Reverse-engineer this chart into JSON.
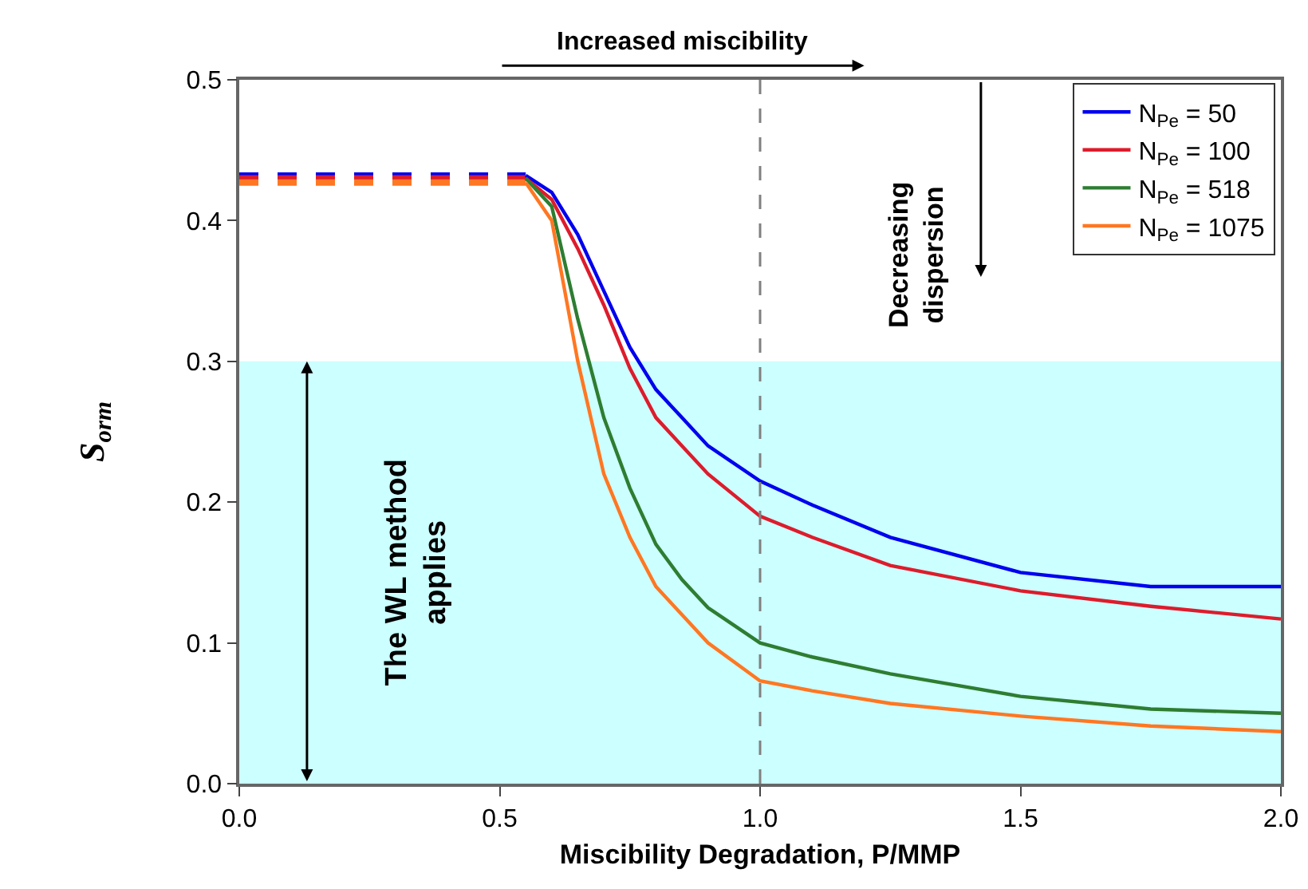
{
  "chart_data": {
    "type": "line",
    "xlabel": "Miscibility Degradation, P/MMP",
    "ylabel": "S$_{orm}$",
    "xlim": [
      0,
      2
    ],
    "xticks": [
      {
        "value": 0,
        "label": "0.0"
      },
      {
        "value": 0.5,
        "label": "0.5"
      },
      {
        "value": 1,
        "label": "1.0"
      },
      {
        "value": 1.5,
        "label": "1.5"
      },
      {
        "value": 2,
        "label": "2.0"
      }
    ],
    "ylim": [
      0,
      0.5
    ],
    "yticks": [
      {
        "value": 0,
        "label": "0.0"
      },
      0.1,
      0.2,
      0.3,
      0.4,
      0.5
    ],
    "grid": false,
    "legend": "top right",
    "marker": "none",
    "series": [
      {
        "color": "#0000ee",
        "line_style": "dashed",
        "x": [
          0,
          0.55
        ],
        "values": [
          0.432,
          0.432
        ]
      },
      {
        "color": "#dd1c2c",
        "line_style": "dashed",
        "x": [
          0,
          0.55
        ],
        "values": [
          0.43,
          0.43
        ]
      },
      {
        "color": "#ff7722",
        "line_style": "dashed",
        "x": [
          0,
          0.55
        ],
        "values": [
          0.427,
          0.427
        ]
      },
      {
        "name": "N$_{Pe}$ = 50",
        "color": "#0000ee",
        "line_style": "solid",
        "x": [
          0.55,
          0.6,
          0.65,
          0.7,
          0.75,
          0.8,
          0.85,
          0.9,
          1.0,
          1.1,
          1.25,
          1.5,
          1.75,
          2.0
        ],
        "values": [
          0.432,
          0.42,
          0.39,
          0.35,
          0.31,
          0.28,
          0.26,
          0.24,
          0.215,
          0.198,
          0.175,
          0.15,
          0.14,
          0.14
        ]
      },
      {
        "name": "N$_{Pe}$ = 100",
        "color": "#dd1c2c",
        "line_style": "solid",
        "x": [
          0.55,
          0.6,
          0.65,
          0.7,
          0.75,
          0.8,
          0.85,
          0.9,
          1.0,
          1.1,
          1.25,
          1.5,
          1.75,
          2.0
        ],
        "values": [
          0.43,
          0.415,
          0.38,
          0.34,
          0.295,
          0.26,
          0.24,
          0.22,
          0.19,
          0.175,
          0.155,
          0.137,
          0.126,
          0.117
        ]
      },
      {
        "name": "N$_{Pe}$ = 518",
        "color": "#2e7d32",
        "line_style": "solid",
        "x": [
          0.55,
          0.6,
          0.65,
          0.7,
          0.75,
          0.8,
          0.85,
          0.9,
          1.0,
          1.1,
          1.25,
          1.5,
          1.75,
          2.0
        ],
        "values": [
          0.43,
          0.41,
          0.33,
          0.26,
          0.21,
          0.17,
          0.145,
          0.125,
          0.1,
          0.09,
          0.078,
          0.062,
          0.053,
          0.05
        ]
      },
      {
        "name": "N$_{Pe}$ = 1075",
        "color": "#ff7722",
        "line_style": "solid",
        "x": [
          0.55,
          0.6,
          0.65,
          0.7,
          0.75,
          0.8,
          0.85,
          0.9,
          1.0,
          1.1,
          1.25,
          1.5,
          1.75,
          2.0
        ],
        "values": [
          0.427,
          0.4,
          0.3,
          0.22,
          0.175,
          0.14,
          0.12,
          0.1,
          0.073,
          0.066,
          0.057,
          0.048,
          0.041,
          0.037
        ]
      }
    ],
    "ref_lines": [
      {
        "axis": "x",
        "value": 1.0,
        "color": "#808080",
        "line_style": "dashed"
      }
    ],
    "bands": [
      {
        "axis": "y",
        "from": 0,
        "to": 0.3,
        "color": "#ccffff",
        "label": "The WL method applies"
      }
    ],
    "annotations": [
      "Increased miscibility",
      "Decreasing dispersion"
    ]
  }
}
